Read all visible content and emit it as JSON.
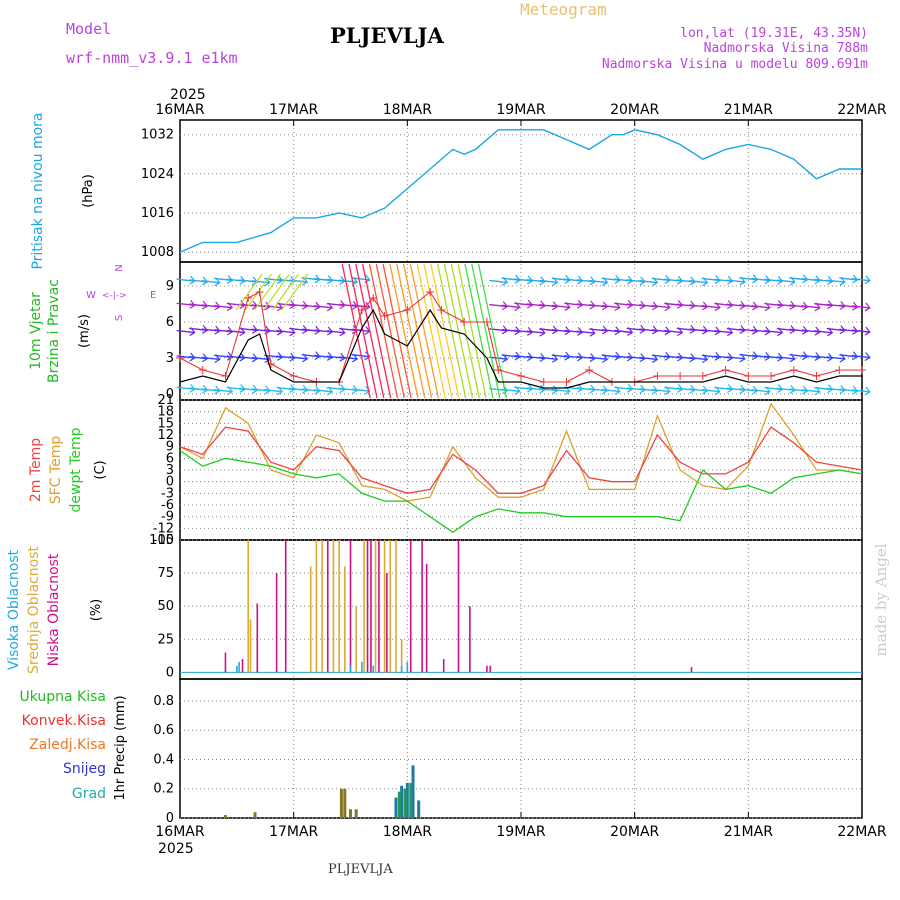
{
  "header": {
    "model_label": "Model",
    "model_name": "wrf-nmm_v3.9.1 e1km",
    "title": "PLJEVLJA",
    "meteogram": "Meteogram",
    "lonlat": "lon,lat (19.31E, 43.35N)",
    "elevation": "Nadmorska Visina 788m",
    "model_elevation": "Nadmorska Visina u modelu 809.691m",
    "footer_station": "PLJEVLJA",
    "watermark": "made by Angel"
  },
  "colors": {
    "magenta_text": "#bb44dd",
    "gold_text": "#e8c070",
    "pressure": "#1aa6e6",
    "wind_speed": "#000000",
    "wind_gust": "#ee3333",
    "temp_2m": "#ee4444",
    "temp_sfc": "#dda030",
    "dewpoint": "#22cc22",
    "cloud_high": "#22aadd",
    "cloud_mid": "#ddaa33",
    "cloud_low": "#cc1188",
    "precip_total": "#22bb22",
    "precip_conv": "#ee3333",
    "precip_strat": "#ee7722",
    "snow": "#3333cc",
    "graupel": "#22aaaa"
  },
  "chart_data": [
    {
      "type": "line",
      "panel": "pressure",
      "ylabel_left": "Pritisak na nivou mora",
      "ylabel_unit": "(hPa)",
      "x_ticks": [
        "16MAR",
        "17MAR",
        "18MAR",
        "19MAR",
        "20MAR",
        "21MAR",
        "22MAR"
      ],
      "x_top_year": "2025",
      "y_ticks": [
        1008,
        1016,
        1024,
        1032
      ],
      "ylim": [
        1006,
        1035
      ],
      "x": [
        0,
        0.2,
        0.5,
        0.8,
        1.0,
        1.2,
        1.4,
        1.6,
        1.8,
        2.0,
        2.2,
        2.4,
        2.5,
        2.6,
        2.8,
        3.0,
        3.2,
        3.4,
        3.6,
        3.8,
        3.9,
        4.0,
        4.2,
        4.4,
        4.6,
        4.8,
        5.0,
        5.2,
        5.4,
        5.6,
        5.8,
        6.0
      ],
      "series": [
        {
          "values": [
            1008,
            1010,
            1010,
            1012,
            1015,
            1015,
            1016,
            1015,
            1017,
            1021,
            1025,
            1029,
            1028,
            1029,
            1033,
            1033,
            1033,
            1031,
            1029,
            1032,
            1032,
            1033,
            1032,
            1030,
            1027,
            1029,
            1030,
            1029,
            1027,
            1023,
            1025,
            1025
          ]
        }
      ]
    },
    {
      "type": "line",
      "panel": "wind",
      "ylabel_left_1": "10m Vjetar",
      "ylabel_left_2": "Brzina i Pravac",
      "ylabel_unit": "(m/s)",
      "compass_w": "W",
      "compass_e": "E",
      "compass_n": "N",
      "compass_s": "S",
      "y_ticks": [
        0,
        3,
        6,
        9
      ],
      "ylim": [
        -0.5,
        11
      ],
      "x": [
        0,
        0.2,
        0.4,
        0.6,
        0.7,
        0.8,
        1.0,
        1.2,
        1.4,
        1.6,
        1.7,
        1.8,
        2.0,
        2.2,
        2.3,
        2.5,
        2.7,
        2.8,
        3.0,
        3.2,
        3.4,
        3.6,
        3.8,
        4.0,
        4.2,
        4.4,
        4.6,
        4.8,
        5.0,
        5.2,
        5.4,
        5.6,
        5.8,
        6.0
      ],
      "series": [
        {
          "name": "speed",
          "values": [
            1,
            1.5,
            1,
            4.5,
            5,
            2,
            1,
            1,
            1,
            5.5,
            7,
            5,
            4,
            7,
            5.5,
            5,
            3,
            1,
            1,
            0.5,
            0.5,
            1,
            1,
            1,
            1,
            1,
            1,
            1.5,
            1,
            1,
            1.5,
            1,
            1.5,
            1.5
          ]
        },
        {
          "name": "gust",
          "values": [
            3,
            2,
            1.5,
            8,
            8.5,
            2.5,
            1.5,
            1,
            1,
            7,
            8,
            6.5,
            7,
            8.5,
            7,
            6,
            6,
            2,
            1.5,
            1,
            1,
            2,
            1,
            1,
            1.5,
            1.5,
            1.5,
            2,
            1.5,
            1.5,
            2,
            1.5,
            2,
            2
          ]
        }
      ]
    },
    {
      "type": "line",
      "panel": "temperature",
      "ylabel_left_1": "2m Temp",
      "ylabel_left_2": "SFC Temp",
      "ylabel_left_3": "dewpt Temp",
      "ylabel_unit": "(C)",
      "y_ticks": [
        21,
        18,
        15,
        12,
        9,
        6,
        3,
        0,
        -3,
        -6,
        -9,
        -12,
        -15
      ],
      "ylim": [
        -15,
        21
      ],
      "x": [
        0,
        0.2,
        0.4,
        0.6,
        0.8,
        1.0,
        1.2,
        1.4,
        1.6,
        1.8,
        2.0,
        2.2,
        2.4,
        2.6,
        2.8,
        3.0,
        3.2,
        3.4,
        3.6,
        3.8,
        4.0,
        4.2,
        4.4,
        4.6,
        4.8,
        5.0,
        5.2,
        5.4,
        5.6,
        5.8,
        6.0
      ],
      "series": [
        {
          "name": "2m",
          "values": [
            9,
            7,
            14,
            13,
            5,
            3,
            9,
            8,
            1,
            -1,
            -3,
            -2,
            7,
            3,
            -3,
            -3,
            -1,
            8,
            1,
            0,
            0,
            12,
            5,
            2,
            2,
            5,
            14,
            10,
            5,
            4,
            3
          ]
        },
        {
          "name": "sfc",
          "values": [
            9,
            6,
            19,
            15,
            3,
            1,
            12,
            10,
            -1,
            -2,
            -5,
            -4,
            9,
            1,
            -4,
            -4,
            -2,
            13,
            -2,
            -2,
            -2,
            17,
            3,
            -1,
            -2,
            4,
            20,
            12,
            3,
            3,
            2
          ]
        },
        {
          "name": "dew",
          "values": [
            8,
            4,
            6,
            5,
            4,
            2,
            1,
            2,
            -3,
            -5,
            -5,
            -9,
            -13,
            -9,
            -7,
            -8,
            -8,
            -9,
            -9,
            -9,
            -9,
            -9,
            -10,
            3,
            -2,
            -1,
            -3,
            1,
            2,
            3,
            2
          ]
        }
      ]
    },
    {
      "type": "bar",
      "panel": "cloud",
      "ylabel_left_1": "Visoka Oblacnost",
      "ylabel_left_2": "Srednja Oblacnost",
      "ylabel_left_3": "Niska Oblacnost",
      "ylabel_unit": "(%)",
      "y_ticks": [
        0,
        25,
        50,
        75,
        100
      ],
      "ylim": [
        -5,
        100
      ],
      "series": [
        {
          "name": "mid",
          "x": [
            0.6,
            0.62,
            1.15,
            1.2,
            1.25,
            1.35,
            1.4,
            1.45,
            1.55,
            1.62,
            1.72,
            1.8,
            1.85,
            1.9,
            1.95
          ],
          "values": [
            100,
            40,
            80,
            100,
            100,
            100,
            100,
            80,
            50,
            100,
            100,
            100,
            100,
            100,
            25
          ]
        },
        {
          "name": "low",
          "x": [
            0.4,
            0.55,
            0.68,
            0.85,
            0.93,
            1.3,
            1.5,
            1.65,
            1.68,
            1.75,
            1.82,
            2.03,
            2.13,
            2.17,
            2.32,
            2.45,
            2.55,
            2.7,
            2.73,
            4.5
          ],
          "values": [
            15,
            10,
            52,
            75,
            100,
            100,
            100,
            100,
            100,
            100,
            75,
            100,
            100,
            82,
            10,
            100,
            50,
            5,
            5,
            4
          ]
        },
        {
          "name": "high",
          "x": [
            0.5,
            0.52,
            1.5,
            1.6,
            1.7,
            1.95,
            2.0
          ],
          "values": [
            5,
            8,
            5,
            8,
            5,
            5,
            8
          ]
        }
      ]
    },
    {
      "type": "bar",
      "panel": "precip",
      "legend": [
        "Ukupna Kisa",
        "Konvek.Kisa",
        "Zaledj.Kisa",
        "Snijeg",
        "Grad"
      ],
      "ylabel_unit": "1hr Precip (mm)",
      "y_ticks": [
        0,
        0.2,
        0.4,
        0.6,
        0.8
      ],
      "ylim": [
        0,
        0.95
      ],
      "x_ticks_bottom": [
        "16MAR",
        "17MAR",
        "18MAR",
        "19MAR",
        "20MAR",
        "21MAR",
        "22MAR"
      ],
      "x_bottom_year": "2025",
      "series": [
        {
          "name": "strat",
          "x": [
            0.4,
            0.66,
            1.42,
            1.45,
            1.5,
            1.55
          ],
          "values": [
            0.02,
            0.04,
            0.2,
            0.2,
            0.06,
            0.06
          ]
        },
        {
          "name": "snow",
          "x": [
            1.9,
            1.95,
            2.0,
            2.05,
            2.1
          ],
          "values": [
            0.14,
            0.22,
            0.24,
            0.36,
            0.12
          ]
        },
        {
          "name": "total",
          "x": [
            1.93,
            1.98,
            2.03
          ],
          "values": [
            0.18,
            0.2,
            0.24
          ]
        }
      ]
    }
  ]
}
